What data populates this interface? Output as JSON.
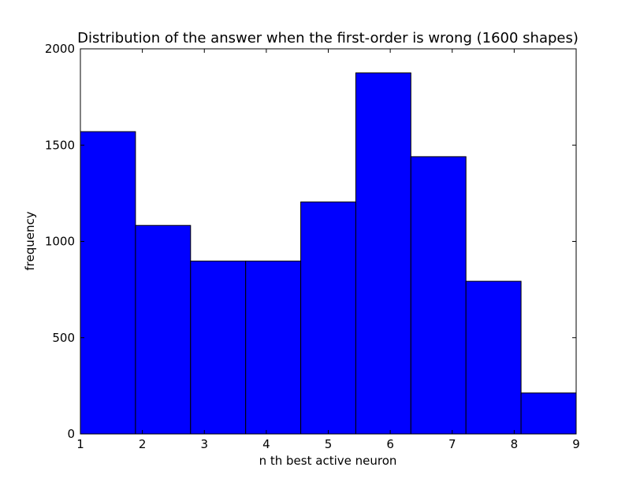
{
  "chart_data": {
    "type": "bar",
    "histogram": true,
    "title": "Distribution of the answer when the first-order is wrong (1600 shapes)",
    "xlabel": "n th best active neuron",
    "ylabel": "frequency",
    "bin_edges": [
      1,
      1.889,
      2.778,
      3.667,
      4.556,
      5.444,
      6.333,
      7.222,
      8.111,
      9
    ],
    "values": [
      1570,
      1083,
      898,
      898,
      1205,
      1875,
      1440,
      793,
      213
    ],
    "xlim": [
      1,
      9
    ],
    "ylim": [
      0,
      2000
    ],
    "xticks": [
      "1",
      "2",
      "3",
      "4",
      "5",
      "6",
      "7",
      "8",
      "9"
    ],
    "yticks": [
      "0",
      "500",
      "1000",
      "1500",
      "2000"
    ],
    "bar_color": "#0000ff",
    "edge_color": "#000000",
    "grid": false,
    "legend": "none"
  }
}
